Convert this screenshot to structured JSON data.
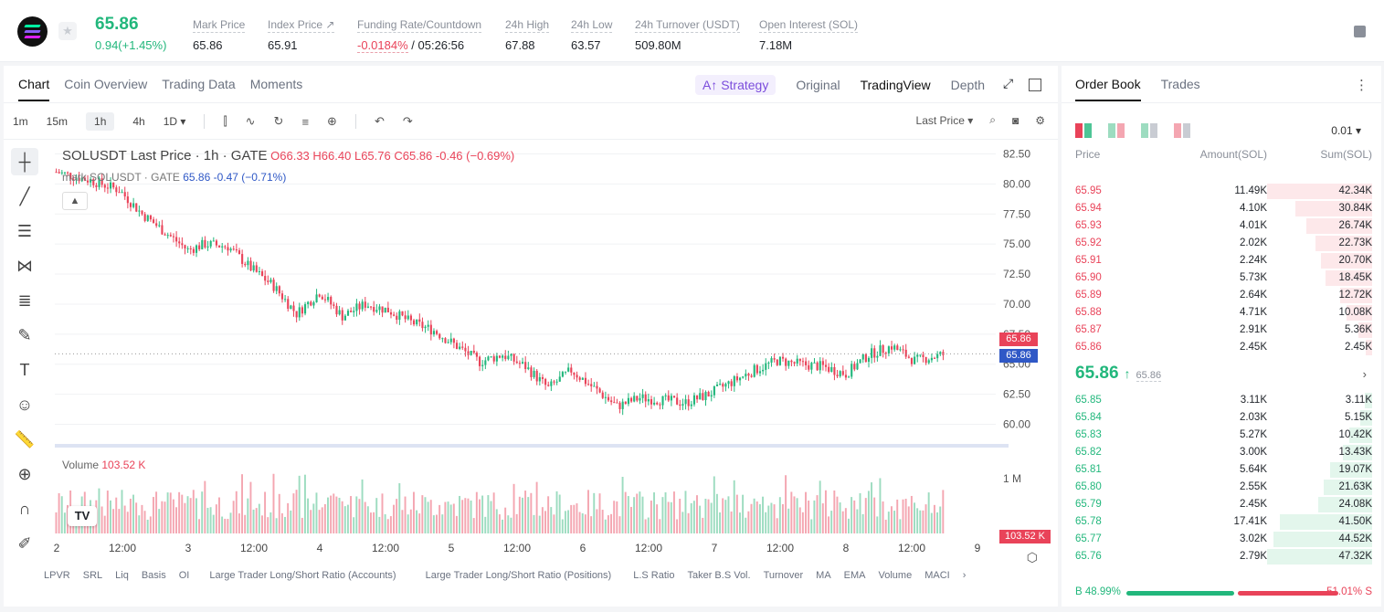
{
  "header": {
    "last_price": "65.86",
    "change": "0.94(+1.45%)",
    "stats": [
      {
        "label": "Mark Price",
        "value": "65.86"
      },
      {
        "label": "Index Price ↗",
        "value": "65.91"
      },
      {
        "label": "Funding Rate/Countdown",
        "value_red": "-0.0184%",
        "value": " / 05:26:56"
      },
      {
        "label": "24h High",
        "value": "67.88"
      },
      {
        "label": "24h Low",
        "value": "63.57"
      },
      {
        "label": "24h Turnover (USDT)",
        "value": "509.80M"
      },
      {
        "label": "Open Interest (SOL)",
        "value": "7.18M"
      }
    ]
  },
  "chart_panel": {
    "tabs": [
      "Chart",
      "Coin Overview",
      "Trading Data",
      "Moments"
    ],
    "view_tabs": {
      "strategy": "Strategy",
      "original": "Original",
      "tradingview": "TradingView",
      "depth": "Depth"
    },
    "timeframes": [
      "1m",
      "15m",
      "1h",
      "4h",
      "1D"
    ],
    "last_price_select": "Last Price",
    "legend": {
      "symbol": "SOLUSDT Last Price · 1h · GATE",
      "o": "O66.33",
      "h": "H66.40",
      "l": "L65.76",
      "c": "C65.86",
      "chg": "-0.46 (−0.69%)"
    },
    "legend2": {
      "label": "mark SOLUSDT · GATE",
      "vals": "65.86  -0.47 (−0.71%)"
    },
    "volume_label": "Volume",
    "volume_value": "103.52 K",
    "price_tag_last": "65.86",
    "price_tag_mark": "65.86",
    "volume_tag": "103.52 K",
    "indicators": [
      "LPVR",
      "SRL",
      "Liq",
      "Basis",
      "OI",
      "Large Trader Long/Short Ratio (Accounts)",
      "Large Trader Long/Short Ratio (Positions)",
      "L.S Ratio",
      "Taker B.S Vol.",
      "Turnover",
      "MA",
      "EMA",
      "Volume",
      "MACI"
    ],
    "colors": {
      "up": "#22b77c",
      "down": "#e94359",
      "up_vol": "#9ddcc0",
      "down_vol": "#f4a6b1"
    }
  },
  "chart_data": {
    "type": "bar",
    "title": "SOLUSDT Last Price · 1h · GATE",
    "y_ticks": [
      "82.50",
      "80.00",
      "77.50",
      "75.00",
      "72.50",
      "70.00",
      "67.50",
      "65.00",
      "62.50",
      "60.00"
    ],
    "ylim": [
      58.9,
      83.6
    ],
    "x_ticks": [
      "2",
      "12:00",
      "3",
      "12:00",
      "4",
      "12:00",
      "5",
      "12:00",
      "6",
      "12:00",
      "7",
      "12:00",
      "8",
      "12:00",
      "9"
    ],
    "volume_tick": "1 M",
    "close_anchors": [
      [
        0,
        81.0
      ],
      [
        12,
        80.3
      ],
      [
        22,
        79.5
      ],
      [
        30,
        77.5
      ],
      [
        38,
        76.0
      ],
      [
        46,
        74.5
      ],
      [
        52,
        75.0
      ],
      [
        60,
        74.8
      ],
      [
        68,
        73.0
      ],
      [
        76,
        71.5
      ],
      [
        84,
        69.2
      ],
      [
        92,
        71.0
      ],
      [
        100,
        69.0
      ],
      [
        108,
        70.0
      ],
      [
        116,
        69.5
      ],
      [
        124,
        68.5
      ],
      [
        132,
        67.8
      ],
      [
        140,
        66.5
      ],
      [
        148,
        65.2
      ],
      [
        156,
        65.8
      ],
      [
        164,
        64.8
      ],
      [
        172,
        63.0
      ],
      [
        180,
        64.5
      ],
      [
        188,
        63.0
      ],
      [
        196,
        61.5
      ],
      [
        204,
        62.2
      ],
      [
        212,
        62.0
      ],
      [
        220,
        61.8
      ],
      [
        228,
        62.5
      ],
      [
        236,
        63.5
      ],
      [
        244,
        64.5
      ],
      [
        252,
        65.3
      ],
      [
        260,
        65.0
      ],
      [
        268,
        64.8
      ],
      [
        276,
        64.2
      ],
      [
        284,
        65.8
      ],
      [
        292,
        66.5
      ],
      [
        300,
        65.3
      ],
      [
        310,
        65.8
      ]
    ],
    "candle_count": 311
  },
  "order_book": {
    "tabs": [
      "Order Book",
      "Trades"
    ],
    "precision": "0.01",
    "headers": {
      "price": "Price",
      "amount": "Amount(SOL)",
      "sum": "Sum(SOL)"
    },
    "asks": [
      {
        "price": "65.95",
        "amount": "11.49K",
        "sum": "42.34K",
        "depth": 1.0
      },
      {
        "price": "65.94",
        "amount": "4.10K",
        "sum": "30.84K",
        "depth": 0.73
      },
      {
        "price": "65.93",
        "amount": "4.01K",
        "sum": "26.74K",
        "depth": 0.63
      },
      {
        "price": "65.92",
        "amount": "2.02K",
        "sum": "22.73K",
        "depth": 0.54
      },
      {
        "price": "65.91",
        "amount": "2.24K",
        "sum": "20.70K",
        "depth": 0.49
      },
      {
        "price": "65.90",
        "amount": "5.73K",
        "sum": "18.45K",
        "depth": 0.44
      },
      {
        "price": "65.89",
        "amount": "2.64K",
        "sum": "12.72K",
        "depth": 0.3
      },
      {
        "price": "65.88",
        "amount": "4.71K",
        "sum": "10.08K",
        "depth": 0.24
      },
      {
        "price": "65.87",
        "amount": "2.91K",
        "sum": "5.36K",
        "depth": 0.13
      },
      {
        "price": "65.86",
        "amount": "2.45K",
        "sum": "2.45K",
        "depth": 0.06
      }
    ],
    "mid_price": "65.86",
    "mid_arrow": "↑",
    "mark_price": "65.86",
    "bids": [
      {
        "price": "65.85",
        "amount": "3.11K",
        "sum": "3.11K",
        "depth": 0.07
      },
      {
        "price": "65.84",
        "amount": "2.03K",
        "sum": "5.15K",
        "depth": 0.11
      },
      {
        "price": "65.83",
        "amount": "5.27K",
        "sum": "10.42K",
        "depth": 0.22
      },
      {
        "price": "65.82",
        "amount": "3.00K",
        "sum": "13.43K",
        "depth": 0.28
      },
      {
        "price": "65.81",
        "amount": "5.64K",
        "sum": "19.07K",
        "depth": 0.4
      },
      {
        "price": "65.80",
        "amount": "2.55K",
        "sum": "21.63K",
        "depth": 0.46
      },
      {
        "price": "65.79",
        "amount": "2.45K",
        "sum": "24.08K",
        "depth": 0.51
      },
      {
        "price": "65.78",
        "amount": "17.41K",
        "sum": "41.50K",
        "depth": 0.88
      },
      {
        "price": "65.77",
        "amount": "3.02K",
        "sum": "44.52K",
        "depth": 0.94
      },
      {
        "price": "65.76",
        "amount": "2.79K",
        "sum": "47.32K",
        "depth": 1.0
      }
    ],
    "buy_ratio": "B 48.99%",
    "sell_ratio": "51.01% S"
  }
}
